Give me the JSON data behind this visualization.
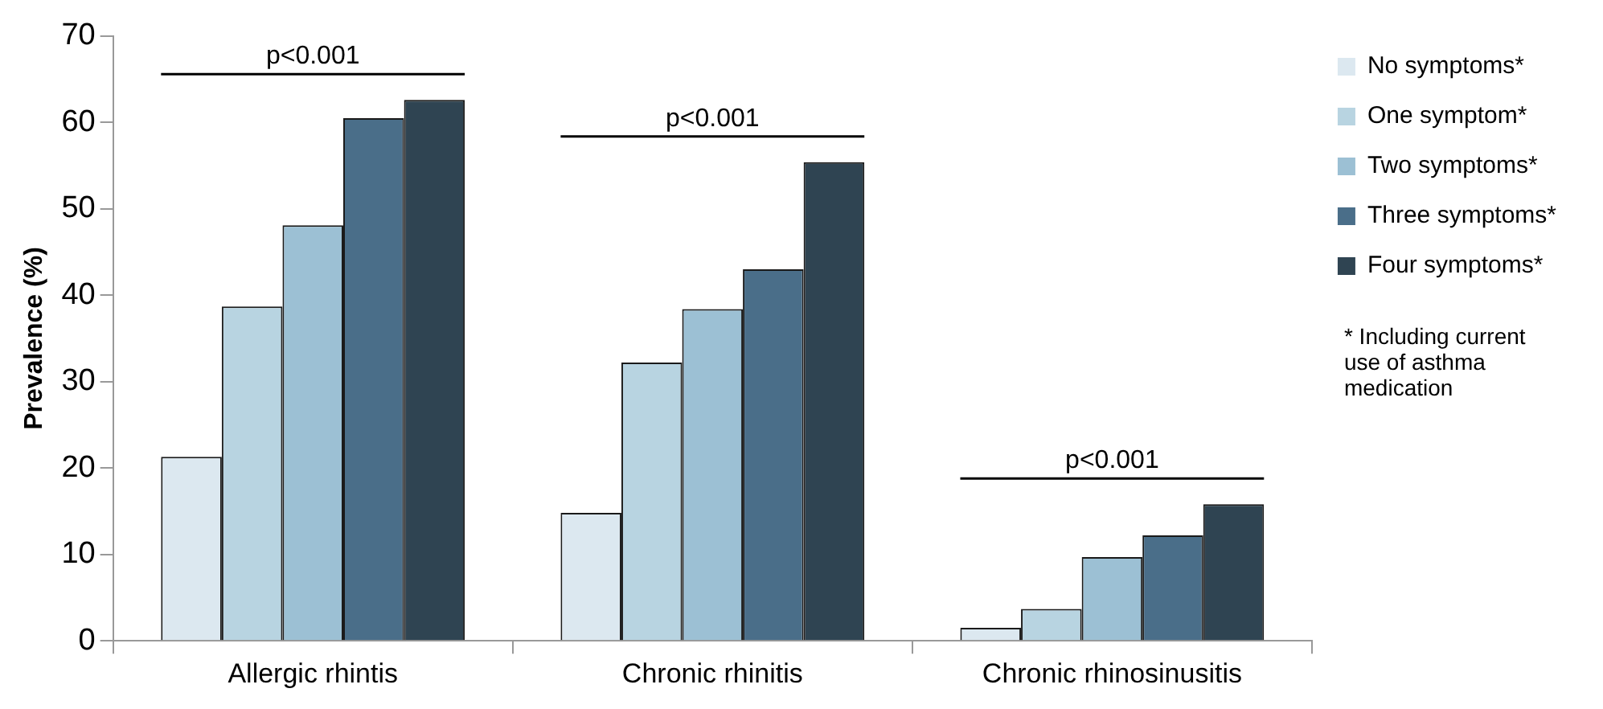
{
  "chart_data": {
    "type": "bar",
    "ylabel": "Prevalence (%)",
    "categories": [
      "Allergic rhintis",
      "Chronic rhinitis",
      "Chronic rhinosinusitis"
    ],
    "series": [
      {
        "name": "No symptoms*",
        "color": "#dce8f0",
        "values": [
          21.3,
          14.8,
          1.5
        ]
      },
      {
        "name": "One symptom*",
        "color": "#b8d4e1",
        "values": [
          38.7,
          32.2,
          3.7
        ]
      },
      {
        "name": "Two symptoms*",
        "color": "#9cc0d4",
        "values": [
          48.1,
          38.4,
          9.7
        ]
      },
      {
        "name": "Three symptoms*",
        "color": "#4a6e89",
        "values": [
          60.5,
          43.0,
          12.2
        ]
      },
      {
        "name": "Four symptoms*",
        "color": "#2f4452",
        "values": [
          62.6,
          55.4,
          15.8
        ]
      }
    ],
    "ylim": [
      0,
      70
    ],
    "yticks": [
      0,
      10,
      20,
      30,
      40,
      50,
      60,
      70
    ],
    "grid": false,
    "legend": "right",
    "annotations": [
      "p<0.001",
      "p<0.001",
      "p<0.001",
      "* Including current use of asthma medication"
    ]
  }
}
